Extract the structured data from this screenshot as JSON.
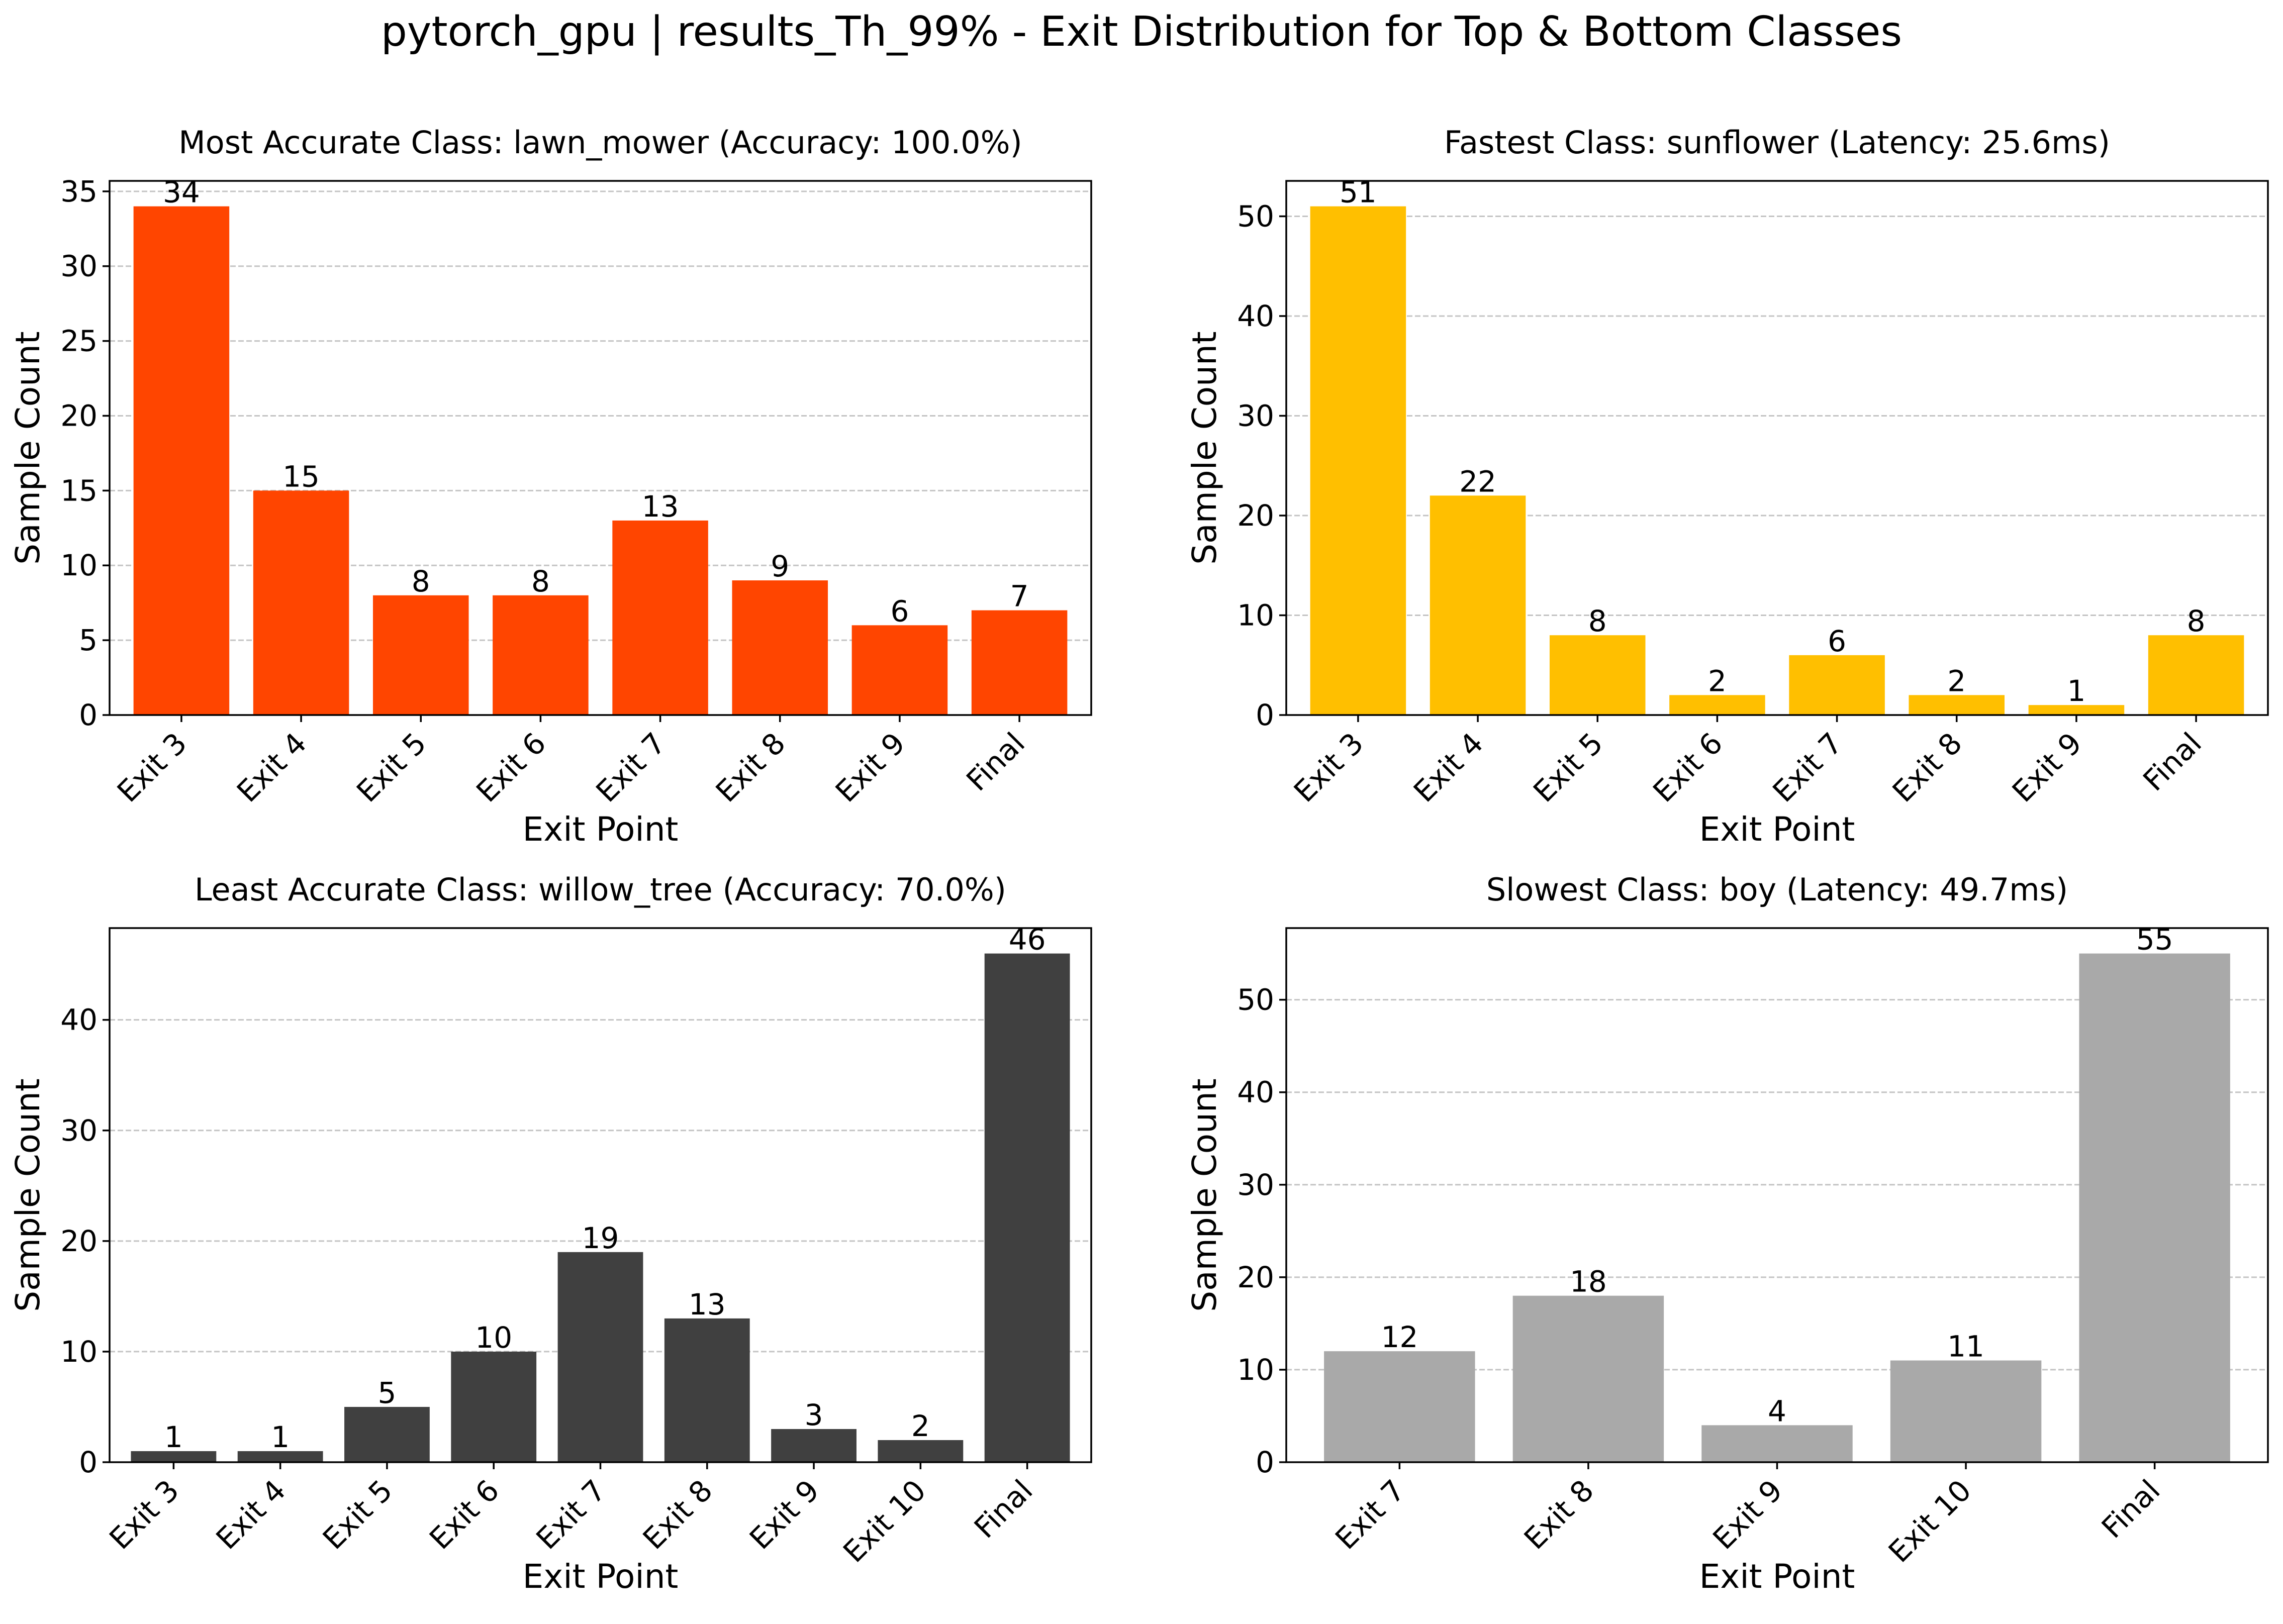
{
  "figure_title": "pytorch_gpu | results_Th_99% - Exit Distribution for Top & Bottom Classes",
  "chart_data": [
    {
      "type": "bar",
      "title": "Most Accurate Class: lawn_mower (Accuracy: 100.0%)",
      "xlabel": "Exit Point",
      "ylabel": "Sample Count",
      "categories": [
        "Exit 3",
        "Exit 4",
        "Exit 5",
        "Exit 6",
        "Exit 7",
        "Exit 8",
        "Exit 9",
        "Final"
      ],
      "values": [
        34,
        15,
        8,
        8,
        13,
        9,
        6,
        7
      ],
      "ylim": [
        0,
        35.7
      ],
      "yticks": [
        0,
        5,
        10,
        15,
        20,
        25,
        30,
        35
      ],
      "color": "#FF4500",
      "grid": "y-dashed"
    },
    {
      "type": "bar",
      "title": "Fastest Class: sunflower (Latency: 25.6ms)",
      "xlabel": "Exit Point",
      "ylabel": "Sample Count",
      "categories": [
        "Exit 3",
        "Exit 4",
        "Exit 5",
        "Exit 6",
        "Exit 7",
        "Exit 8",
        "Exit 9",
        "Final"
      ],
      "values": [
        51,
        22,
        8,
        2,
        6,
        2,
        1,
        8
      ],
      "ylim": [
        0,
        53.55
      ],
      "yticks": [
        0,
        10,
        20,
        30,
        40,
        50
      ],
      "color": "#FFBF00",
      "grid": "y-dashed"
    },
    {
      "type": "bar",
      "title": "Least Accurate Class: willow_tree (Accuracy: 70.0%)",
      "xlabel": "Exit Point",
      "ylabel": "Sample Count",
      "categories": [
        "Exit 3",
        "Exit 4",
        "Exit 5",
        "Exit 6",
        "Exit 7",
        "Exit 8",
        "Exit 9",
        "Exit 10",
        "Final"
      ],
      "values": [
        1,
        1,
        5,
        10,
        19,
        13,
        3,
        2,
        46
      ],
      "ylim": [
        0,
        48.3
      ],
      "yticks": [
        0,
        10,
        20,
        30,
        40
      ],
      "color": "#404040",
      "grid": "y-dashed"
    },
    {
      "type": "bar",
      "title": "Slowest Class: boy (Latency: 49.7ms)",
      "xlabel": "Exit Point",
      "ylabel": "Sample Count",
      "categories": [
        "Exit 7",
        "Exit 8",
        "Exit 9",
        "Exit 10",
        "Final"
      ],
      "values": [
        12,
        18,
        4,
        11,
        55
      ],
      "ylim": [
        0,
        57.75
      ],
      "yticks": [
        0,
        10,
        20,
        30,
        40,
        50
      ],
      "color": "#A9A9A9",
      "grid": "y-dashed"
    }
  ]
}
